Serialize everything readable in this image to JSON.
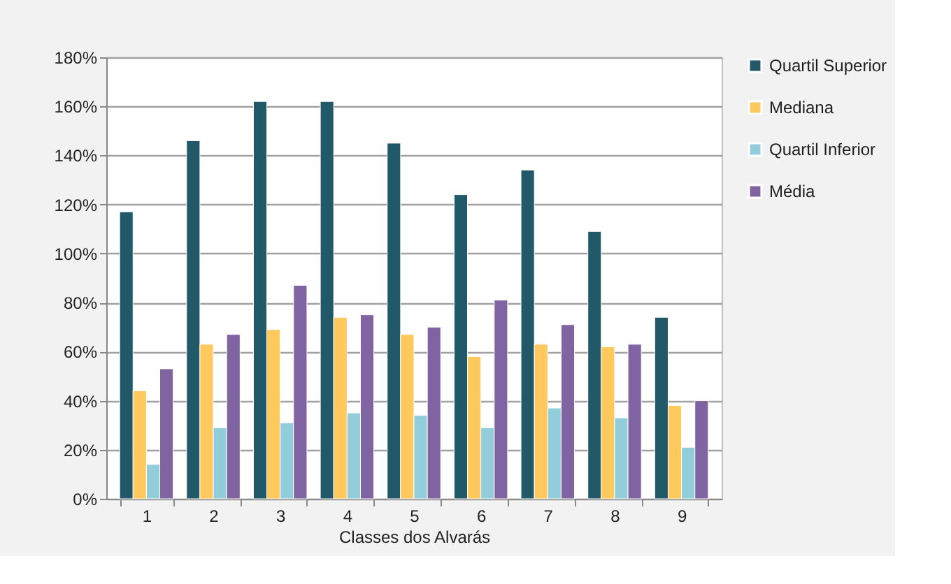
{
  "chart_data": {
    "type": "bar",
    "xlabel": "Classes dos Alvarás",
    "categories": [
      "1",
      "2",
      "3",
      "4",
      "5",
      "6",
      "7",
      "8",
      "9"
    ],
    "series": [
      {
        "name": "Quartil Superior",
        "color": "#215968",
        "values": [
          117,
          146,
          162,
          162,
          145,
          124,
          134,
          109,
          74
        ]
      },
      {
        "name": "Mediana",
        "color": "#ffc95e",
        "values": [
          44,
          63,
          69,
          74,
          67,
          58,
          63,
          62,
          38
        ]
      },
      {
        "name": "Quartil Inferior",
        "color": "#92cddc",
        "values": [
          14,
          29,
          31,
          35,
          34,
          29,
          37,
          33,
          21
        ]
      },
      {
        "name": "Média",
        "color": "#8064a2",
        "values": [
          53,
          67,
          87,
          75,
          70,
          81,
          71,
          63,
          40
        ]
      }
    ],
    "ylim": [
      0,
      180
    ],
    "yticks": [
      {
        "value": 0,
        "label": "0%"
      },
      {
        "value": 20,
        "label": "20%"
      },
      {
        "value": 40,
        "label": "40%"
      },
      {
        "value": 60,
        "label": "60%"
      },
      {
        "value": 80,
        "label": "80%"
      },
      {
        "value": 100,
        "label": "100%"
      },
      {
        "value": 120,
        "label": "120%"
      },
      {
        "value": 140,
        "label": "140%"
      },
      {
        "value": 160,
        "label": "160%"
      },
      {
        "value": 180,
        "label": "180%"
      }
    ],
    "grid": "y",
    "legend": "right"
  }
}
